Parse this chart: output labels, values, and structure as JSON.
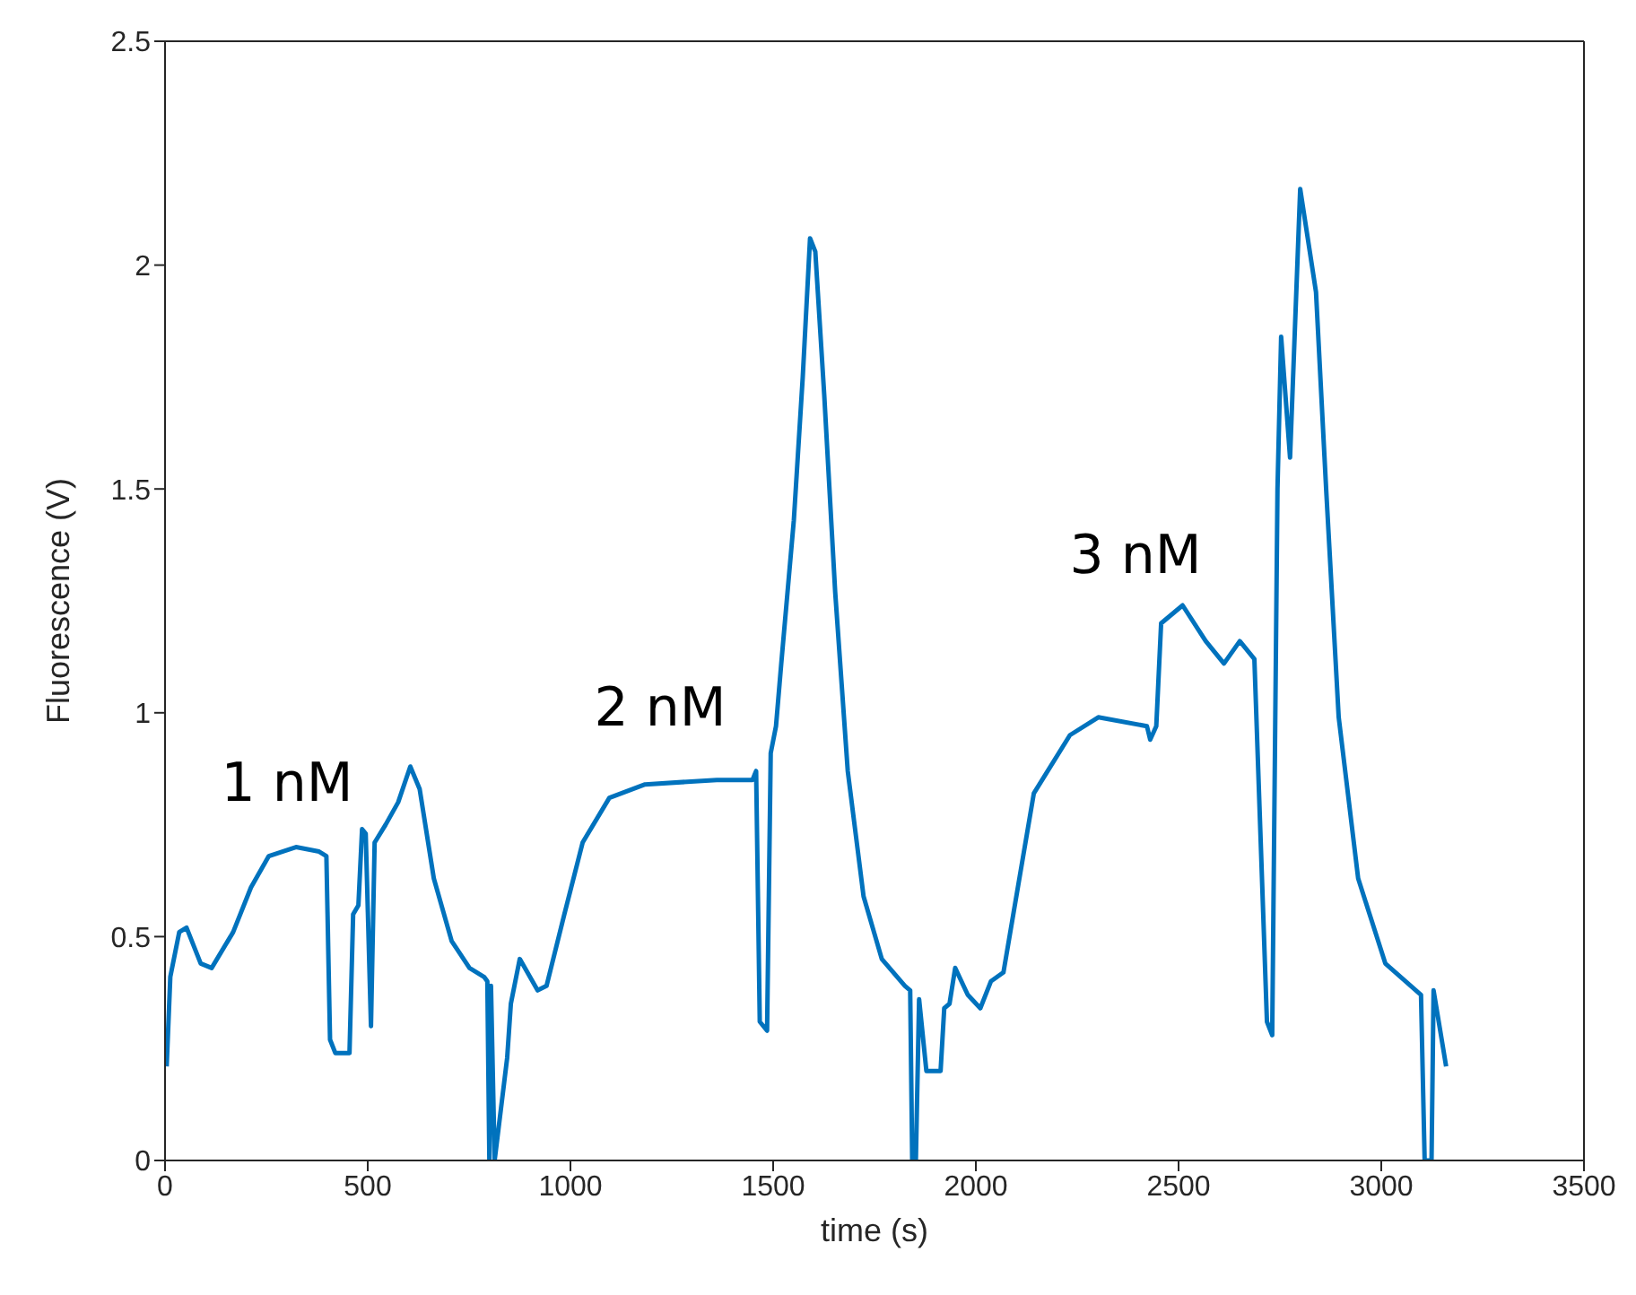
{
  "chart_data": {
    "type": "line",
    "xlabel": "time (s)",
    "ylabel": "Fluorescence (V)",
    "xlim": [
      0,
      3500
    ],
    "xticks": [
      0,
      500,
      1000,
      1500,
      2000,
      2500,
      3000,
      3500
    ],
    "ylim": [
      0,
      2.5
    ],
    "yticks": [
      0,
      0.5,
      1,
      1.5,
      2,
      2.5
    ],
    "marker": "none",
    "line_style": "solid",
    "annotations": [
      "1 nM",
      "2 nM",
      "3 nM"
    ],
    "series": [
      {
        "color": "#0072bd",
        "x": [
          4,
          13,
          35,
          53,
          88,
          115,
          168,
          212,
          256,
          323,
          380,
          398,
          407,
          420,
          455,
          464,
          477,
          486,
          495,
          508,
          517,
          544,
          575,
          605,
          628,
          663,
          707,
          751,
          787,
          795,
          800,
          804,
          813,
          844,
          853,
          875,
          919,
          941,
          985,
          1030,
          1096,
          1184,
          1361,
          1449,
          1458,
          1467,
          1485,
          1494,
          1507,
          1520,
          1551,
          1573,
          1591,
          1604,
          1626,
          1653,
          1684,
          1723,
          1768,
          1825,
          1838,
          1843,
          1852,
          1860,
          1878,
          1913,
          1922,
          1935,
          1949,
          1980,
          2011,
          2037,
          2068,
          2143,
          2232,
          2302,
          2422,
          2430,
          2445,
          2457,
          2510,
          2567,
          2612,
          2651,
          2687,
          2718,
          2731,
          2744,
          2753,
          2775,
          2800,
          2839,
          2864,
          2895,
          2943,
          3010,
          3098,
          3107,
          3124,
          3129,
          3160
        ],
        "values": [
          0.21,
          0.41,
          0.51,
          0.52,
          0.44,
          0.43,
          0.51,
          0.61,
          0.68,
          0.7,
          0.69,
          0.68,
          0.27,
          0.24,
          0.24,
          0.55,
          0.57,
          0.74,
          0.73,
          0.3,
          0.71,
          0.75,
          0.8,
          0.88,
          0.83,
          0.63,
          0.49,
          0.43,
          0.41,
          0.4,
          0,
          0.39,
          0,
          0.23,
          0.35,
          0.45,
          0.38,
          0.39,
          0.55,
          0.71,
          0.81,
          0.84,
          0.85,
          0.85,
          0.87,
          0.31,
          0.29,
          0.91,
          0.97,
          1.11,
          1.43,
          1.75,
          2.06,
          2.03,
          1.71,
          1.27,
          0.87,
          0.59,
          0.45,
          0.39,
          0.38,
          0,
          0,
          0.36,
          0.2,
          0.2,
          0.34,
          0.35,
          0.43,
          0.37,
          0.34,
          0.4,
          0.42,
          0.82,
          0.95,
          0.99,
          0.97,
          0.94,
          0.97,
          1.2,
          1.24,
          1.16,
          1.11,
          1.16,
          1.12,
          0.31,
          0.28,
          1.5,
          1.84,
          1.57,
          2.17,
          1.94,
          1.5,
          0.99,
          0.63,
          0.44,
          0.37,
          0,
          0,
          0.38,
          0.21
        ]
      }
    ]
  }
}
